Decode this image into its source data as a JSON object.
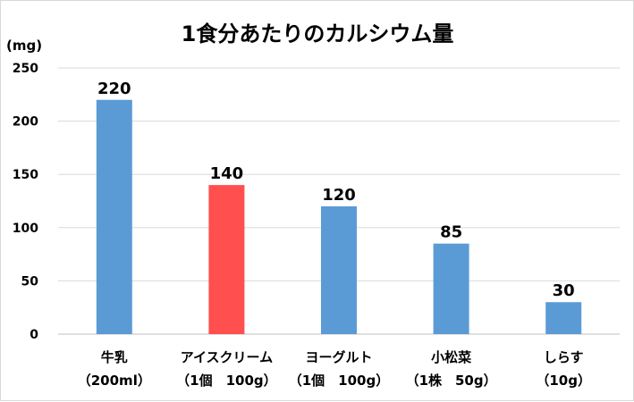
{
  "chart_data": {
    "type": "bar",
    "title": "1食分あたりのカルシウム量",
    "ylabel": "(mg)",
    "xlabel": "",
    "ylim": [
      0,
      250
    ],
    "yticks": [
      0,
      50,
      100,
      150,
      200,
      250
    ],
    "grid": true,
    "legend": "none",
    "categories": [
      {
        "name": "牛乳",
        "serving": "（200ml）"
      },
      {
        "name": "アイスクリーム",
        "serving": "（1個　100g）"
      },
      {
        "name": "ヨーグルト",
        "serving": "（1個　100g）"
      },
      {
        "name": "小松菜",
        "serving": "（1株　50g）"
      },
      {
        "name": "しらす",
        "serving": "（10g）"
      }
    ],
    "values": [
      220,
      140,
      120,
      85,
      30
    ],
    "bar_colors": [
      "#5b9bd5",
      "#ff4f4f",
      "#5b9bd5",
      "#5b9bd5",
      "#5b9bd5"
    ]
  }
}
